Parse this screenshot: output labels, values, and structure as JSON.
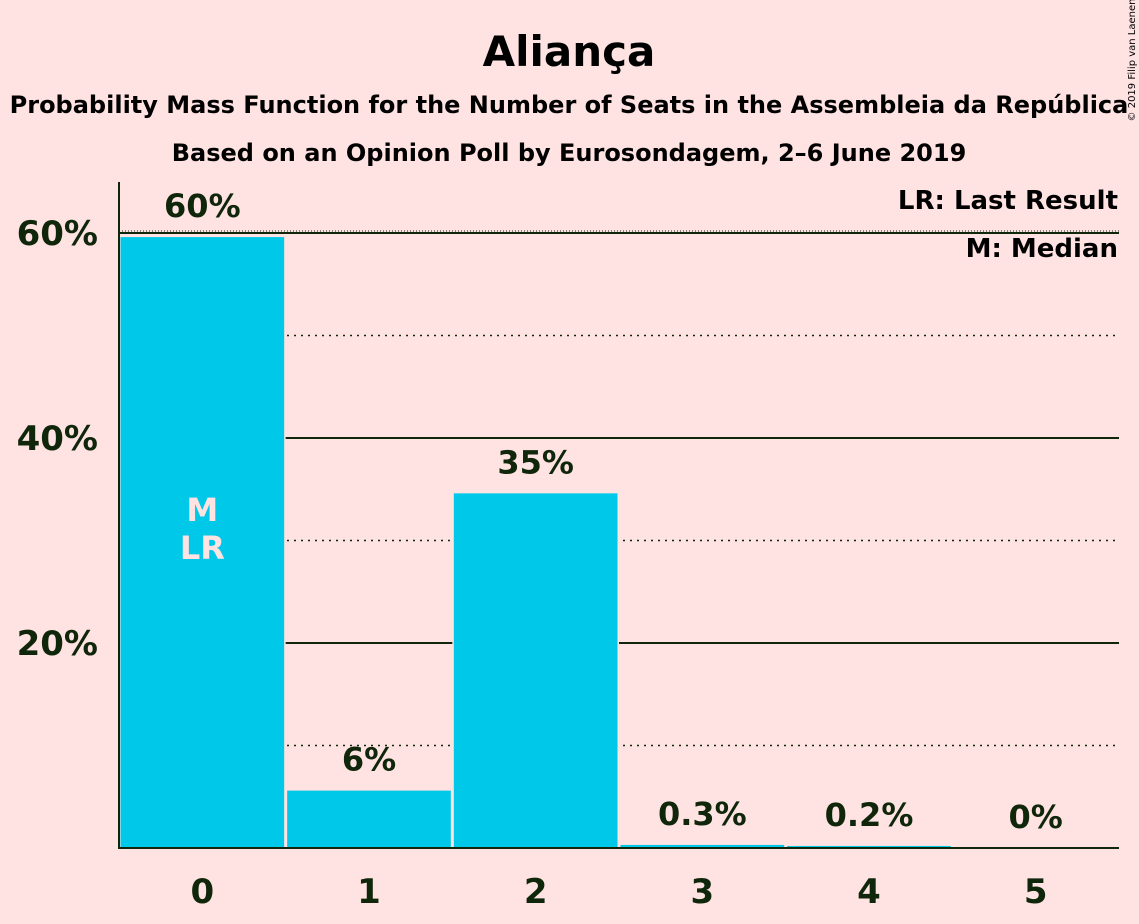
{
  "chart_data": {
    "type": "bar",
    "title": "Aliança",
    "subtitle": "Probability Mass Function for the Number of Seats in the Assembleia da República",
    "subtitle2": "Based on an Opinion Poll by Eurosondagem, 2–6 June 2019",
    "copyright": "© 2019 Filip van Laenen",
    "categories": [
      "0",
      "1",
      "2",
      "3",
      "4",
      "5"
    ],
    "values": [
      59.6,
      5.6,
      34.6,
      0.3,
      0.2,
      0.0
    ],
    "value_labels": [
      "60%",
      "6%",
      "35%",
      "0.3%",
      "0.2%",
      "0%"
    ],
    "ylim": [
      0,
      65
    ],
    "yticks": [
      {
        "value": 20,
        "label": "20%"
      },
      {
        "value": 40,
        "label": "40%"
      },
      {
        "value": 60,
        "label": "60%"
      }
    ],
    "minor_gridlines": [
      10,
      30,
      50
    ],
    "last_result_value": 60,
    "bar_markers": [
      {
        "category": "0",
        "lines": [
          "M",
          "LR"
        ]
      }
    ],
    "legend": [
      "LR: Last Result",
      "M: Median"
    ],
    "bar_color": "#00C8E8",
    "background_color": "#FFE2E2",
    "text_color": "#0F260A"
  }
}
